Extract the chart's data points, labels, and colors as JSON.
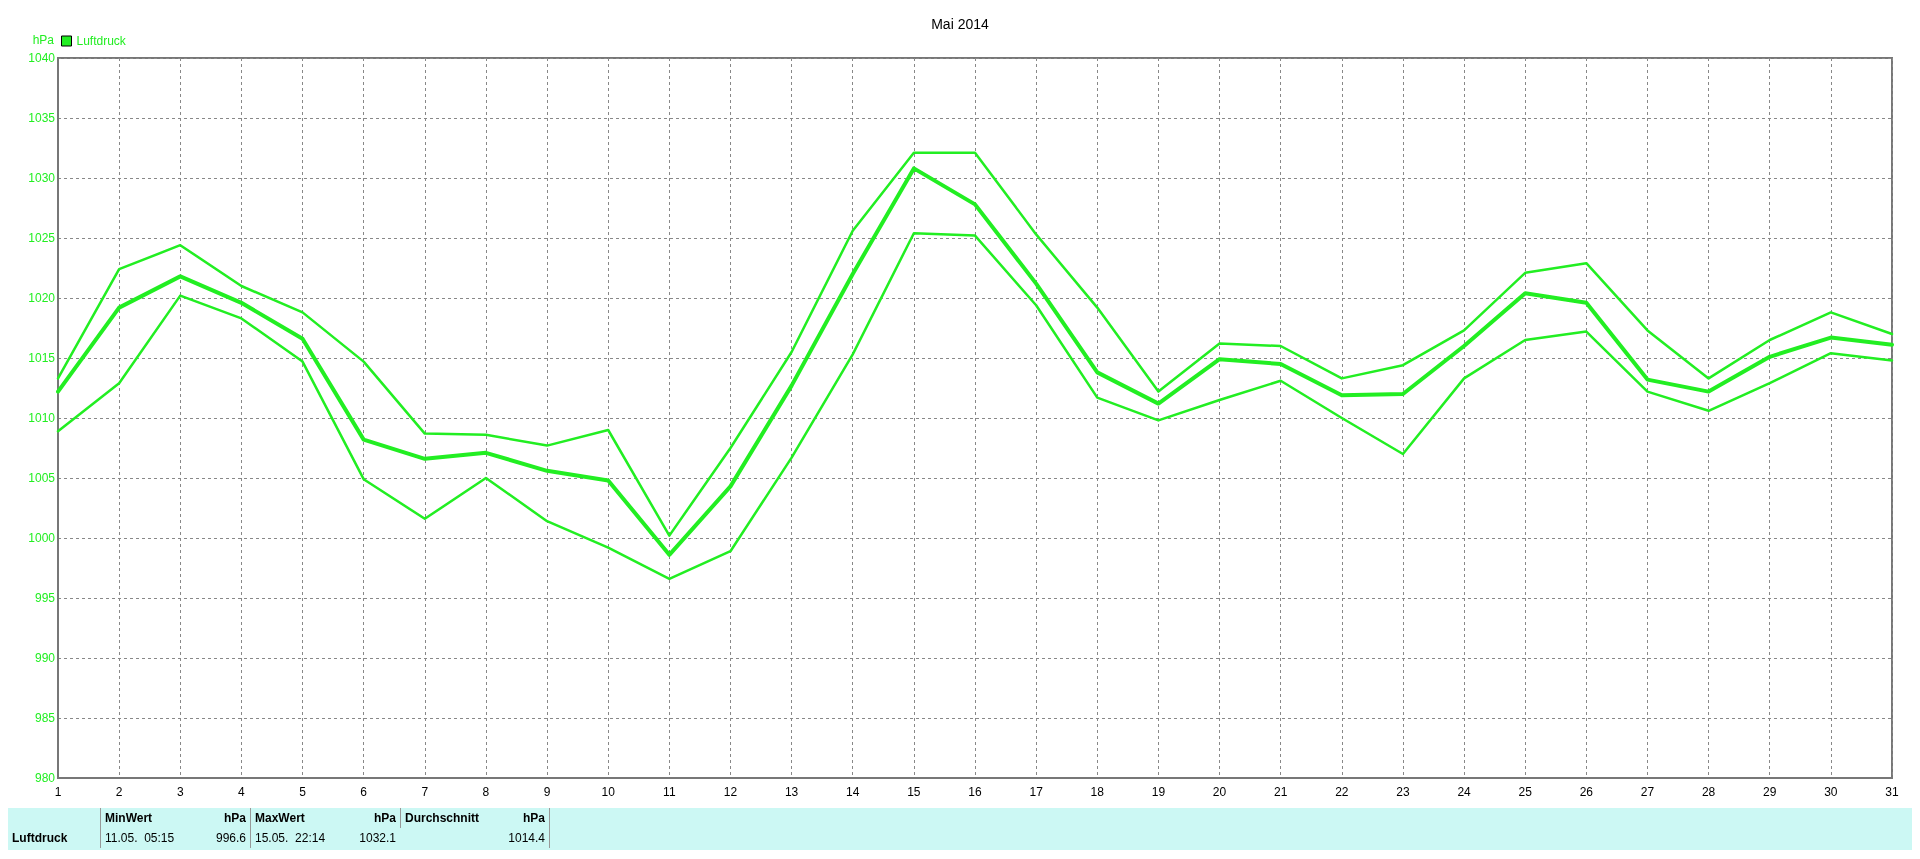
{
  "chart_data": {
    "type": "line",
    "title": "Mai 2014",
    "ylabel": "hPa",
    "x": [
      1,
      2,
      3,
      4,
      5,
      6,
      7,
      8,
      9,
      10,
      11,
      12,
      13,
      14,
      15,
      16,
      17,
      18,
      19,
      20,
      21,
      22,
      23,
      24,
      25,
      26,
      27,
      28,
      29,
      30,
      31
    ],
    "series": [
      {
        "name": "Luftdruck",
        "color": "#22ee22",
        "values": [
          1012.2,
          1019.2,
          1021.8,
          1019.6,
          1016.6,
          1008.2,
          1006.6,
          1007.1,
          1005.6,
          1004.8,
          998.6,
          1004.3,
          1012.7,
          1022,
          1030.8,
          1027.8,
          1021.2,
          1013.8,
          1011.2,
          1014.9,
          1014.5,
          1011.9,
          1012,
          1016,
          1020.4,
          1019.6,
          1013.2,
          1012.2,
          1015.1,
          1016.7,
          1016.1
        ]
      },
      {
        "color": "#22ee22",
        "values": [
          1013.3,
          1022.4,
          1024.4,
          1021,
          1018.8,
          1014.7,
          1008.7,
          1008.6,
          1007.7,
          1009,
          1000.2,
          1007.5,
          1015.5,
          1025.6,
          1032.1,
          1032.1,
          1025.3,
          1019.2,
          1012.2,
          1016.2,
          1016,
          1013.3,
          1014.4,
          1017.3,
          1022.1,
          1022.9,
          1017.3,
          1013.3,
          1016.5,
          1018.8,
          1017
        ]
      },
      {
        "color": "#22ee22",
        "values": [
          1008.9,
          1012.9,
          1020.2,
          1018.3,
          1014.7,
          1004.9,
          1001.6,
          1005,
          1001.4,
          999.2,
          996.6,
          998.9,
          1006.7,
          1015.3,
          1025.4,
          1025.2,
          1019.4,
          1011.7,
          1009.8,
          1011.5,
          1013.1,
          1010,
          1007,
          1013.3,
          1016.5,
          1017.2,
          1012.2,
          1010.6,
          1012.9,
          1015.4,
          1014.8
        ]
      }
    ],
    "xlim": [
      1,
      31
    ],
    "xticks": [
      1,
      2,
      3,
      4,
      5,
      6,
      7,
      8,
      9,
      10,
      11,
      12,
      13,
      14,
      15,
      16,
      17,
      18,
      19,
      20,
      21,
      22,
      23,
      24,
      25,
      26,
      27,
      28,
      29,
      30,
      31
    ],
    "ylim": [
      980,
      1040
    ],
    "yticks": [
      980,
      985,
      990,
      995,
      1000,
      1005,
      1010,
      1015,
      1020,
      1025,
      1030,
      1035,
      1040
    ],
    "grid": true,
    "legend": "top left",
    "marker": "none",
    "line_style": "solid",
    "annotations": [
      "MinWert",
      "hPa",
      "MaxWert",
      "hPa",
      "Durchschnitt",
      "hPa",
      "Luftdruck",
      "11.05.  05:15",
      "996.6",
      "15.05.  22:14",
      "1032.1",
      "1014.4"
    ]
  }
}
